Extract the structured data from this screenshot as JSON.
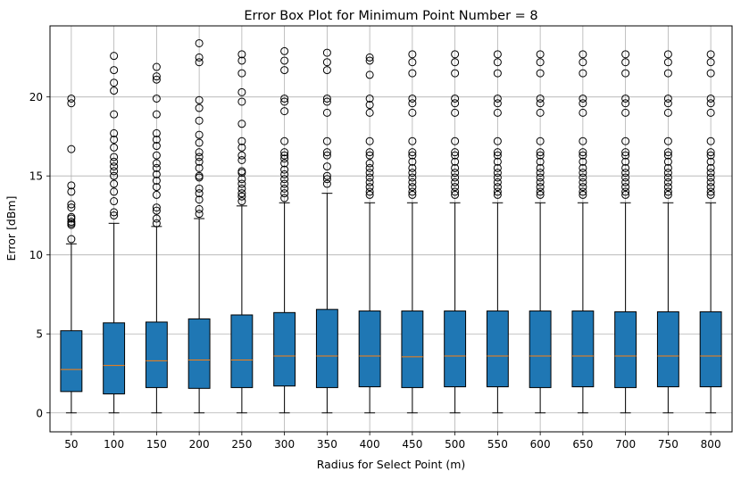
{
  "chart_data": {
    "type": "box",
    "title": "Error Box Plot for Minimum Point Number = 8",
    "xlabel": "Radius for Select Point (m)",
    "ylabel": "Error [dBm]",
    "ylim": [
      -1.2,
      24.5
    ],
    "yticks": [
      0,
      5,
      10,
      15,
      20
    ],
    "grid": true,
    "colors": {
      "box_fill": "#1f77b4",
      "median": "#ff7f0e",
      "grid": "#b0b0b0",
      "outline": "#000000"
    },
    "categories": [
      "50",
      "100",
      "150",
      "200",
      "250",
      "300",
      "350",
      "400",
      "450",
      "500",
      "550",
      "600",
      "650",
      "700",
      "750",
      "800"
    ],
    "boxes": [
      {
        "whislo": 0,
        "q1": 1.35,
        "med": 2.75,
        "q3": 5.2,
        "whishi": 10.7,
        "fliers": [
          11.0,
          11.9,
          12.0,
          12.1,
          12.3,
          12.4,
          13.0,
          13.2,
          14.0,
          14.4,
          16.7,
          19.6,
          19.9
        ]
      },
      {
        "whislo": 0,
        "q1": 1.2,
        "med": 3.0,
        "q3": 5.7,
        "whishi": 12.0,
        "fliers": [
          12.5,
          12.7,
          13.4,
          14.0,
          14.5,
          15.0,
          15.3,
          15.6,
          15.9,
          16.2,
          16.8,
          17.3,
          17.7,
          18.9,
          20.4,
          20.9,
          21.7,
          22.6
        ]
      },
      {
        "whislo": 0,
        "q1": 1.6,
        "med": 3.3,
        "q3": 5.75,
        "whishi": 11.8,
        "fliers": [
          12.0,
          12.3,
          12.8,
          13.0,
          13.8,
          14.3,
          14.7,
          15.1,
          15.5,
          15.8,
          16.3,
          16.9,
          17.3,
          17.7,
          18.9,
          19.9,
          21.1,
          21.3,
          21.9
        ]
      },
      {
        "whislo": 0,
        "q1": 1.55,
        "med": 3.35,
        "q3": 5.95,
        "whishi": 12.3,
        "fliers": [
          12.6,
          12.9,
          13.5,
          13.9,
          14.2,
          14.9,
          15.0,
          15.5,
          15.9,
          16.2,
          16.5,
          17.1,
          17.6,
          18.5,
          19.3,
          19.8,
          22.2,
          22.5,
          23.4
        ]
      },
      {
        "whislo": 0,
        "q1": 1.6,
        "med": 3.35,
        "q3": 6.2,
        "whishi": 13.1,
        "fliers": [
          13.4,
          13.7,
          13.9,
          14.2,
          14.5,
          14.8,
          15.2,
          15.3,
          16.0,
          16.3,
          16.8,
          17.2,
          18.3,
          19.7,
          20.3,
          21.5,
          22.3,
          22.7
        ]
      },
      {
        "whislo": 0,
        "q1": 1.7,
        "med": 3.6,
        "q3": 6.35,
        "whishi": 13.3,
        "fliers": [
          13.6,
          13.9,
          14.2,
          14.5,
          14.8,
          15.1,
          15.4,
          15.8,
          16.1,
          16.3,
          16.5,
          17.2,
          19.1,
          19.7,
          19.9,
          21.7,
          22.3,
          22.9
        ]
      },
      {
        "whislo": 0,
        "q1": 1.6,
        "med": 3.6,
        "q3": 6.55,
        "whishi": 13.9,
        "fliers": [
          14.5,
          14.8,
          15.0,
          15.6,
          16.3,
          16.5,
          17.2,
          19.0,
          19.7,
          19.9,
          21.7,
          22.2,
          22.8
        ]
      },
      {
        "whislo": 0,
        "q1": 1.65,
        "med": 3.6,
        "q3": 6.45,
        "whishi": 13.3,
        "fliers": [
          13.8,
          14.0,
          14.3,
          14.6,
          14.9,
          15.2,
          15.5,
          15.8,
          16.3,
          16.5,
          17.2,
          19.0,
          19.5,
          19.9,
          21.4,
          22.3,
          22.5
        ]
      },
      {
        "whislo": 0,
        "q1": 1.6,
        "med": 3.55,
        "q3": 6.45,
        "whishi": 13.3,
        "fliers": [
          13.8,
          14.0,
          14.3,
          14.6,
          14.9,
          15.2,
          15.5,
          15.9,
          16.3,
          16.5,
          17.2,
          19.0,
          19.6,
          19.9,
          21.5,
          22.2,
          22.7
        ]
      },
      {
        "whislo": 0,
        "q1": 1.65,
        "med": 3.6,
        "q3": 6.45,
        "whishi": 13.3,
        "fliers": [
          13.8,
          14.0,
          14.3,
          14.6,
          14.9,
          15.2,
          15.5,
          15.9,
          16.3,
          16.5,
          17.2,
          19.0,
          19.6,
          19.9,
          21.5,
          22.2,
          22.7
        ]
      },
      {
        "whislo": 0,
        "q1": 1.65,
        "med": 3.6,
        "q3": 6.45,
        "whishi": 13.3,
        "fliers": [
          13.8,
          14.0,
          14.3,
          14.6,
          14.9,
          15.2,
          15.5,
          15.9,
          16.3,
          16.5,
          17.2,
          19.0,
          19.6,
          19.9,
          21.5,
          22.2,
          22.7
        ]
      },
      {
        "whislo": 0,
        "q1": 1.6,
        "med": 3.6,
        "q3": 6.45,
        "whishi": 13.3,
        "fliers": [
          13.8,
          14.0,
          14.3,
          14.6,
          14.9,
          15.2,
          15.5,
          15.9,
          16.3,
          16.5,
          17.2,
          19.0,
          19.6,
          19.9,
          21.5,
          22.2,
          22.7
        ]
      },
      {
        "whislo": 0,
        "q1": 1.65,
        "med": 3.6,
        "q3": 6.45,
        "whishi": 13.3,
        "fliers": [
          13.8,
          14.0,
          14.3,
          14.6,
          14.9,
          15.2,
          15.5,
          15.9,
          16.3,
          16.5,
          17.2,
          19.0,
          19.6,
          19.9,
          21.5,
          22.2,
          22.7
        ]
      },
      {
        "whislo": 0,
        "q1": 1.6,
        "med": 3.6,
        "q3": 6.4,
        "whishi": 13.3,
        "fliers": [
          13.8,
          14.0,
          14.3,
          14.6,
          14.9,
          15.2,
          15.5,
          15.9,
          16.3,
          16.5,
          17.2,
          19.0,
          19.6,
          19.9,
          21.5,
          22.2,
          22.7
        ]
      },
      {
        "whislo": 0,
        "q1": 1.65,
        "med": 3.6,
        "q3": 6.4,
        "whishi": 13.3,
        "fliers": [
          13.8,
          14.0,
          14.3,
          14.6,
          14.9,
          15.2,
          15.5,
          15.9,
          16.3,
          16.5,
          17.2,
          19.0,
          19.6,
          19.9,
          21.5,
          22.2,
          22.7
        ]
      },
      {
        "whislo": 0,
        "q1": 1.65,
        "med": 3.6,
        "q3": 6.4,
        "whishi": 13.3,
        "fliers": [
          13.8,
          14.0,
          14.3,
          14.6,
          14.9,
          15.2,
          15.5,
          15.9,
          16.3,
          16.5,
          17.2,
          19.0,
          19.6,
          19.9,
          21.5,
          22.2,
          22.7
        ]
      }
    ]
  }
}
